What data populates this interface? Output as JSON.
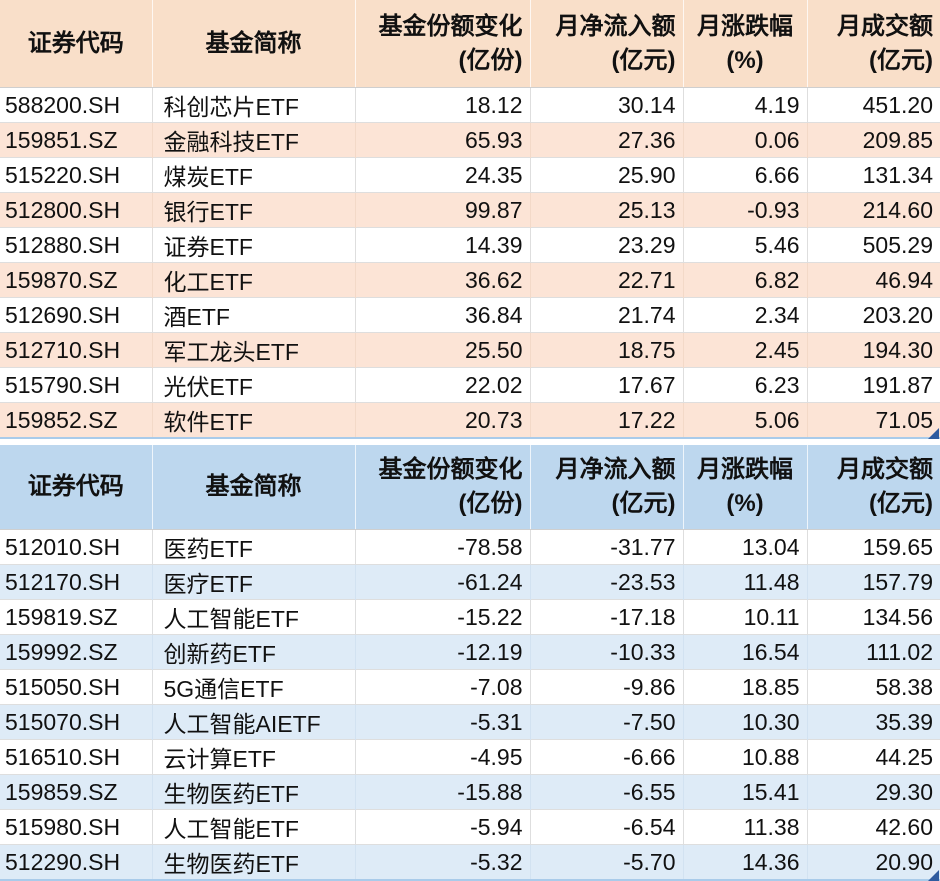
{
  "colors": {
    "inflow_header_bg": "#F9DFC9",
    "inflow_alt_row_bg": "#FCE4D6",
    "outflow_header_bg": "#BDD7EE",
    "outflow_alt_row_bg": "#DEEBF7",
    "selection_line": "#A9CBEA",
    "selection_handle": "#2E5B9F",
    "text": "#111111"
  },
  "chart_data": [
    {
      "type": "table",
      "theme": "orange",
      "columns": [
        {
          "line1": "证券代码",
          "line2": ""
        },
        {
          "line1": "基金简称",
          "line2": ""
        },
        {
          "line1": "基金份额变化",
          "line2": "(亿份)"
        },
        {
          "line1": "月净流入额",
          "line2": "(亿元)"
        },
        {
          "line1": "月涨跌幅",
          "line2": "(%)"
        },
        {
          "line1": "月成交额",
          "line2": "(亿元)"
        }
      ],
      "rows": [
        {
          "code": "588200.SH",
          "name": "科创芯片ETF",
          "share_change": "18.12",
          "net_inflow": "30.14",
          "change_pct": "4.19",
          "turnover": "451.20"
        },
        {
          "code": "159851.SZ",
          "name": "金融科技ETF",
          "share_change": "65.93",
          "net_inflow": "27.36",
          "change_pct": "0.06",
          "turnover": "209.85"
        },
        {
          "code": "515220.SH",
          "name": "煤炭ETF",
          "share_change": "24.35",
          "net_inflow": "25.90",
          "change_pct": "6.66",
          "turnover": "131.34"
        },
        {
          "code": "512800.SH",
          "name": "银行ETF",
          "share_change": "99.87",
          "net_inflow": "25.13",
          "change_pct": "-0.93",
          "turnover": "214.60"
        },
        {
          "code": "512880.SH",
          "name": "证券ETF",
          "share_change": "14.39",
          "net_inflow": "23.29",
          "change_pct": "5.46",
          "turnover": "505.29"
        },
        {
          "code": "159870.SZ",
          "name": "化工ETF",
          "share_change": "36.62",
          "net_inflow": "22.71",
          "change_pct": "6.82",
          "turnover": "46.94"
        },
        {
          "code": "512690.SH",
          "name": "酒ETF",
          "share_change": "36.84",
          "net_inflow": "21.74",
          "change_pct": "2.34",
          "turnover": "203.20"
        },
        {
          "code": "512710.SH",
          "name": "军工龙头ETF",
          "share_change": "25.50",
          "net_inflow": "18.75",
          "change_pct": "2.45",
          "turnover": "194.30"
        },
        {
          "code": "515790.SH",
          "name": "光伏ETF",
          "share_change": "22.02",
          "net_inflow": "17.67",
          "change_pct": "6.23",
          "turnover": "191.87"
        },
        {
          "code": "159852.SZ",
          "name": "软件ETF",
          "share_change": "20.73",
          "net_inflow": "17.22",
          "change_pct": "5.06",
          "turnover": "71.05"
        }
      ]
    },
    {
      "type": "table",
      "theme": "blue",
      "columns": [
        {
          "line1": "证券代码",
          "line2": ""
        },
        {
          "line1": "基金简称",
          "line2": ""
        },
        {
          "line1": "基金份额变化",
          "line2": "(亿份)"
        },
        {
          "line1": "月净流入额",
          "line2": "(亿元)"
        },
        {
          "line1": "月涨跌幅",
          "line2": "(%)"
        },
        {
          "line1": "月成交额",
          "line2": "(亿元)"
        }
      ],
      "rows": [
        {
          "code": "512010.SH",
          "name": "医药ETF",
          "share_change": "-78.58",
          "net_inflow": "-31.77",
          "change_pct": "13.04",
          "turnover": "159.65"
        },
        {
          "code": "512170.SH",
          "name": "医疗ETF",
          "share_change": "-61.24",
          "net_inflow": "-23.53",
          "change_pct": "11.48",
          "turnover": "157.79"
        },
        {
          "code": "159819.SZ",
          "name": "人工智能ETF",
          "share_change": "-15.22",
          "net_inflow": "-17.18",
          "change_pct": "10.11",
          "turnover": "134.56"
        },
        {
          "code": "159992.SZ",
          "name": "创新药ETF",
          "share_change": "-12.19",
          "net_inflow": "-10.33",
          "change_pct": "16.54",
          "turnover": "111.02"
        },
        {
          "code": "515050.SH",
          "name": "5G通信ETF",
          "share_change": "-7.08",
          "net_inflow": "-9.86",
          "change_pct": "18.85",
          "turnover": "58.38"
        },
        {
          "code": "515070.SH",
          "name": "人工智能AIETF",
          "share_change": "-5.31",
          "net_inflow": "-7.50",
          "change_pct": "10.30",
          "turnover": "35.39"
        },
        {
          "code": "516510.SH",
          "name": "云计算ETF",
          "share_change": "-4.95",
          "net_inflow": "-6.66",
          "change_pct": "10.88",
          "turnover": "44.25"
        },
        {
          "code": "159859.SZ",
          "name": "生物医药ETF",
          "share_change": "-15.88",
          "net_inflow": "-6.55",
          "change_pct": "15.41",
          "turnover": "29.30"
        },
        {
          "code": "515980.SH",
          "name": "人工智能ETF",
          "share_change": "-5.94",
          "net_inflow": "-6.54",
          "change_pct": "11.38",
          "turnover": "42.60"
        },
        {
          "code": "512290.SH",
          "name": "生物医药ETF",
          "share_change": "-5.32",
          "net_inflow": "-5.70",
          "change_pct": "14.36",
          "turnover": "20.90"
        }
      ]
    }
  ]
}
